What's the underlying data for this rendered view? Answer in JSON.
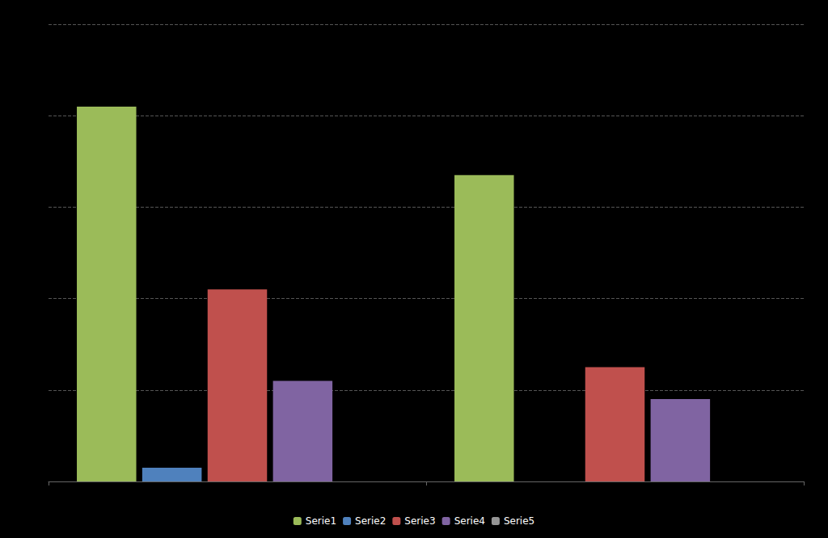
{
  "chart_data": {
    "type": "bar",
    "categories": [
      null,
      null
    ],
    "series": [
      {
        "name": "Serie1",
        "color": "#9BBB59",
        "values": [
          82,
          67
        ]
      },
      {
        "name": "Serie2",
        "color": "#4F81BD",
        "values": [
          3,
          0
        ]
      },
      {
        "name": "Serie3",
        "color": "#C0504D",
        "values": [
          42,
          25
        ]
      },
      {
        "name": "Serie4",
        "color": "#8064A2",
        "values": [
          22,
          18
        ]
      },
      {
        "name": "Serie5",
        "color": "#969696",
        "values": [
          0,
          0
        ]
      }
    ],
    "ylim": [
      0,
      100
    ],
    "yticks": [
      0,
      20,
      40,
      60,
      80,
      100
    ],
    "grid": true,
    "legend": "bottom",
    "tick_labels": false
  }
}
